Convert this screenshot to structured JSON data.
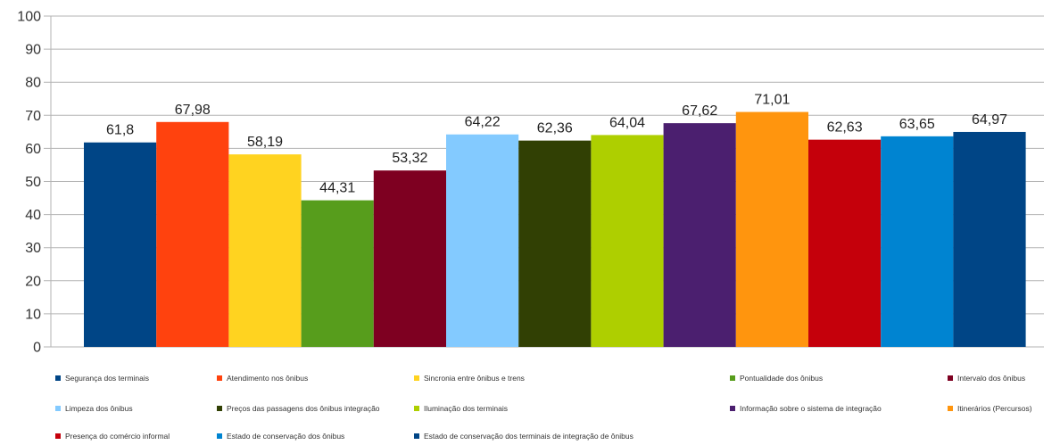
{
  "chart_data": {
    "type": "bar",
    "title": "",
    "xlabel": "",
    "ylabel": "",
    "ylim": [
      0,
      100
    ],
    "ytick_step": 10,
    "grid": "horizontal",
    "legend_position": "bottom",
    "decimal_separator": ",",
    "categories": [
      "Segurança dos terminais",
      "Atendimento nos ônibus",
      "Sincronia entre ônibus e trens",
      "Pontualidade dos ônibus",
      "Intervalo dos ônibus",
      "Limpeza dos ônibus",
      "Preços das passagens dos ônibus integração",
      "Iluminação dos terminais",
      "Informação sobre o sistema de integração",
      "Itinerários (Percursos)",
      "Presença do comércio informal",
      "Estado de conservação dos ônibus",
      "Estado de conservação dos terminais de integração de ônibus"
    ],
    "values": [
      61.8,
      67.98,
      58.19,
      44.31,
      53.32,
      64.22,
      62.36,
      64.04,
      67.62,
      71.01,
      62.63,
      63.65,
      64.97
    ],
    "value_labels": [
      "61,8",
      "67,98",
      "58,19",
      "44,31",
      "53,32",
      "64,22",
      "62,36",
      "64,04",
      "67,62",
      "71,01",
      "62,63",
      "63,65",
      "64,97"
    ],
    "colors": [
      "#004586",
      "#ff420e",
      "#ffd320",
      "#579d1c",
      "#7e0021",
      "#83caff",
      "#314004",
      "#aecf00",
      "#4b1f6f",
      "#ff950e",
      "#c5000b",
      "#0084d1",
      "#004586"
    ]
  }
}
